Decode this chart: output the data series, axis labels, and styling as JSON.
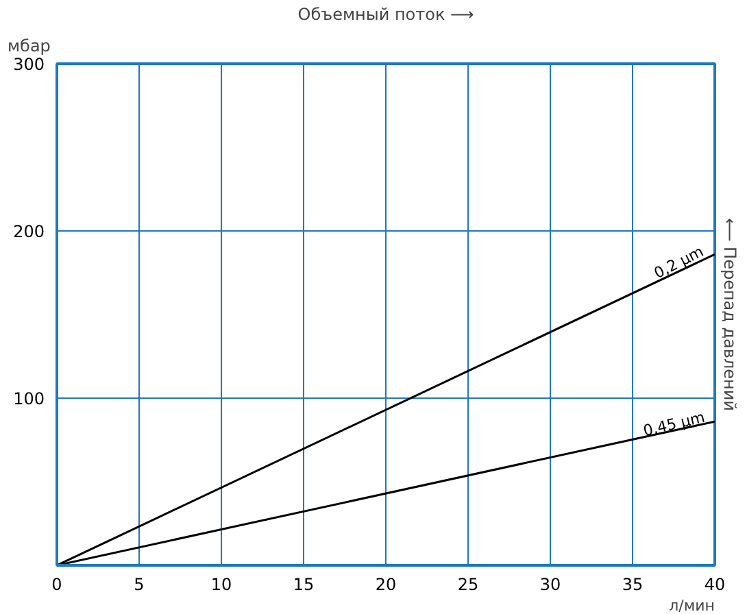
{
  "chart_data": {
    "type": "line",
    "title": "Объемный поток ⟶",
    "xlabel": "л/мин",
    "ylabel": "мбар",
    "y2label": "⟵ Перепад давлений",
    "x": [
      0,
      40
    ],
    "series": [
      {
        "name": "0,2 µm",
        "color": "#000000",
        "values": [
          0,
          186
        ]
      },
      {
        "name": "0,45 µm",
        "color": "#000000",
        "values": [
          0,
          86
        ]
      }
    ],
    "xlim": [
      0,
      40
    ],
    "xticks": [
      0,
      5,
      10,
      15,
      20,
      25,
      30,
      35,
      40
    ],
    "ylim": [
      0,
      300
    ],
    "yticks": [
      {
        "value": 0,
        "label": null
      },
      100,
      200,
      300
    ],
    "grid": true,
    "marker": "none",
    "line_style": "solid"
  }
}
